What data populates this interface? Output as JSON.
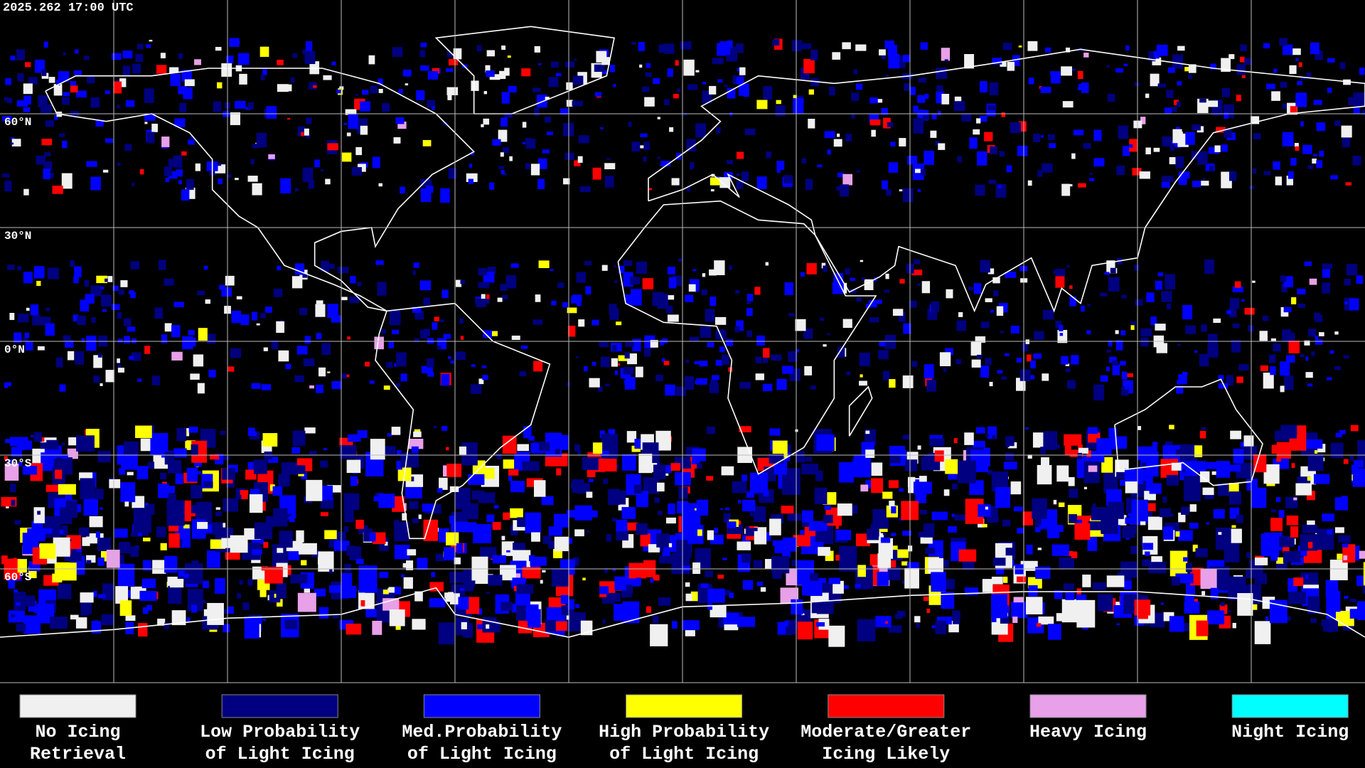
{
  "timestamp": "2025.262 17:00 UTC",
  "latitude_labels": [
    "60°N",
    "30°N",
    "0°N",
    "30°S",
    "60°S"
  ],
  "legend": [
    {
      "lines": [
        "No Icing",
        "Retrieval"
      ],
      "color": "#f0f0f0"
    },
    {
      "lines": [
        "Low Probability",
        "of Light Icing"
      ],
      "color": "#000080"
    },
    {
      "lines": [
        "Med.Probability",
        "of Light Icing"
      ],
      "color": "#0000ff"
    },
    {
      "lines": [
        "High Probability",
        "of Light Icing"
      ],
      "color": "#ffff00"
    },
    {
      "lines": [
        "Moderate/Greater",
        "Icing Likely"
      ],
      "color": "#ff0000"
    },
    {
      "lines": [
        "Heavy Icing"
      ],
      "color": "#e8a0e8"
    },
    {
      "lines": [
        "Night Icing"
      ],
      "color": "#00ffff"
    }
  ]
}
